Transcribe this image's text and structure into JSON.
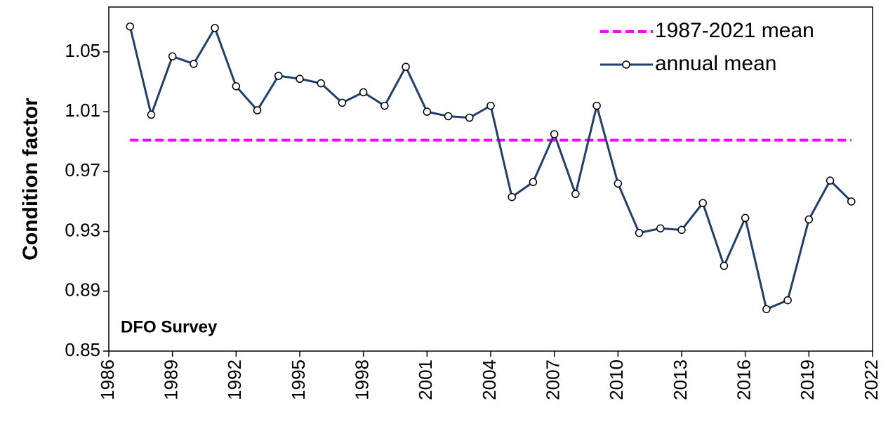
{
  "chart_data": {
    "type": "line",
    "y_label": "Condition factor",
    "annotation": "DFO Survey",
    "x": [
      1987,
      1988,
      1989,
      1990,
      1991,
      1992,
      1993,
      1994,
      1995,
      1996,
      1997,
      1998,
      1999,
      2000,
      2001,
      2002,
      2003,
      2004,
      2005,
      2006,
      2007,
      2008,
      2009,
      2010,
      2011,
      2012,
      2013,
      2014,
      2015,
      2016,
      2017,
      2018,
      2019,
      2020,
      2021
    ],
    "series": [
      {
        "name": "1987-2021 mean",
        "color": "#ff00ff",
        "dashed": true,
        "x": [
          1987,
          2021
        ],
        "values": [
          0.991,
          0.991
        ]
      },
      {
        "name": "annual mean",
        "color": "#1f3f6e",
        "markers": true,
        "values": [
          1.067,
          1.008,
          1.047,
          1.042,
          1.066,
          1.027,
          1.011,
          1.034,
          1.032,
          1.029,
          1.016,
          1.023,
          1.014,
          1.04,
          1.01,
          1.007,
          1.006,
          1.014,
          0.953,
          0.963,
          0.995,
          0.955,
          1.014,
          0.962,
          0.929,
          0.932,
          0.931,
          0.949,
          0.907,
          0.939,
          0.878,
          0.884,
          0.938,
          0.964,
          0.95
        ]
      }
    ],
    "xlim": [
      1986,
      2022
    ],
    "xticks": [
      1986,
      1989,
      1992,
      1995,
      1998,
      2001,
      2004,
      2007,
      2010,
      2013,
      2016,
      2019,
      2022
    ],
    "ylim": [
      0.85,
      1.08
    ],
    "yticks": [
      0.85,
      0.89,
      0.93,
      0.97,
      1.01,
      1.05
    ],
    "legend": "top-right"
  }
}
